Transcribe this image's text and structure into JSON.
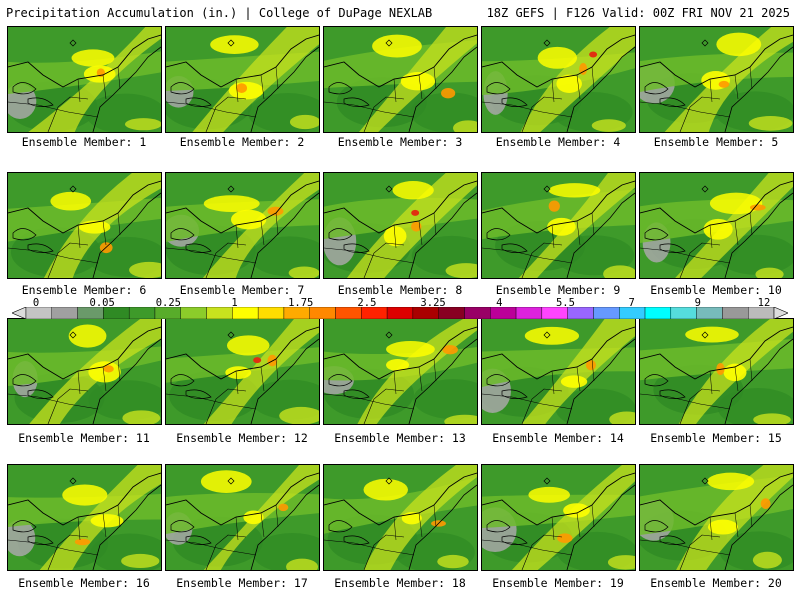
{
  "header": {
    "title": "Precipitation Accumulation (in.) | College of DuPage NEXLAB",
    "run_info": "18Z GEFS | F126 Valid: 00Z FRI NOV 21 2025"
  },
  "colors": {
    "gray_light": "#dcdcdc",
    "gray_mid": "#a8a8a8",
    "green_dark": "#2f8a24",
    "green": "#3e9a2a",
    "green_light": "#6cbb2a",
    "yellow_green": "#c8e21e",
    "yellow": "#ffff00",
    "orange": "#ff9900",
    "red": "#e03010"
  },
  "colorbar": {
    "labels": [
      "0",
      "0.05",
      "0.25",
      "1",
      "1.75",
      "2.5",
      "3.25",
      "4",
      "5.5",
      "7",
      "9",
      "12"
    ],
    "swatches": [
      "#dcdcdc",
      "#c4c4c4",
      "#a0a0a0",
      "#6a9a6a",
      "#2f8a24",
      "#3e9a2a",
      "#58ac2a",
      "#8ccc2a",
      "#c8e21e",
      "#ffff00",
      "#ffdd00",
      "#ffaa00",
      "#ff8800",
      "#ff5500",
      "#ff2200",
      "#dd0000",
      "#aa0000",
      "#880022",
      "#990066",
      "#bb0099",
      "#dd22dd",
      "#ff44ff",
      "#9966ff",
      "#6699ff",
      "#33ccff",
      "#00ffff",
      "#55dddd",
      "#77bbbb",
      "#999999",
      "#bbbbbb",
      "#dddddd"
    ]
  },
  "members": [
    {
      "label": "Ensemble Member: 1"
    },
    {
      "label": "Ensemble Member: 2"
    },
    {
      "label": "Ensemble Member: 3"
    },
    {
      "label": "Ensemble Member: 4"
    },
    {
      "label": "Ensemble Member: 5"
    },
    {
      "label": "Ensemble Member: 6"
    },
    {
      "label": "Ensemble Member: 7"
    },
    {
      "label": "Ensemble Member: 8"
    },
    {
      "label": "Ensemble Member: 9"
    },
    {
      "label": "Ensemble Member: 10"
    },
    {
      "label": "Ensemble Member: 11"
    },
    {
      "label": "Ensemble Member: 12"
    },
    {
      "label": "Ensemble Member: 13"
    },
    {
      "label": "Ensemble Member: 14"
    },
    {
      "label": "Ensemble Member: 15"
    },
    {
      "label": "Ensemble Member: 16"
    },
    {
      "label": "Ensemble Member: 17"
    },
    {
      "label": "Ensemble Member: 18"
    },
    {
      "label": "Ensemble Member: 19"
    },
    {
      "label": "Ensemble Member: 20"
    }
  ]
}
